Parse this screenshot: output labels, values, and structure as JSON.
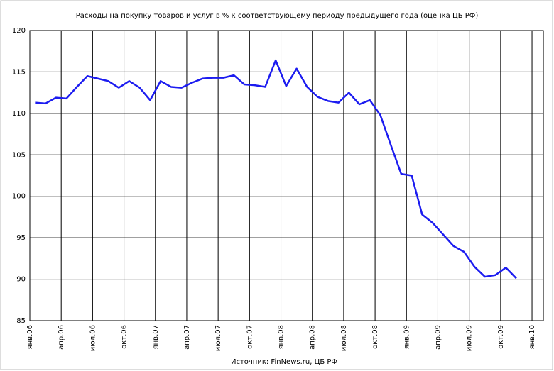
{
  "chart_data": {
    "type": "line",
    "title": "Расходы на покупку товаров и услуг в % к соответствующему периоду предыдущего года (оценка ЦБ РФ)",
    "source": "Источник: FinNews.ru, ЦБ РФ",
    "categories": [
      "янв.06",
      null,
      null,
      "апр.06",
      null,
      null,
      "июл.06",
      null,
      null,
      "окт.06",
      null,
      null,
      "янв.07",
      null,
      null,
      "апр.07",
      null,
      null,
      "июл.07",
      null,
      null,
      "окт.07",
      null,
      null,
      "янв.08",
      null,
      null,
      "апр.08",
      null,
      null,
      "июл.08",
      null,
      null,
      "окт.08",
      null,
      null,
      "янв.09",
      null,
      null,
      "апр.09",
      null,
      null,
      "июл.09",
      null,
      null,
      "окт.09",
      null,
      null,
      "янв.10"
    ],
    "values": [
      111.3,
      111.2,
      111.9,
      111.8,
      113.2,
      114.5,
      114.2,
      113.9,
      113.1,
      113.9,
      113.1,
      111.6,
      113.9,
      113.2,
      113.1,
      113.7,
      114.2,
      114.3,
      114.3,
      114.6,
      113.5,
      113.4,
      113.2,
      116.4,
      113.3,
      115.4,
      113.2,
      112.0,
      111.5,
      111.3,
      112.5,
      111.1,
      111.6,
      109.8,
      106.2,
      102.7,
      102.5,
      97.8,
      96.8,
      95.4,
      94.0,
      93.3,
      91.5,
      90.3,
      90.5,
      91.4,
      90.1,
      null,
      null
    ],
    "color": "#1c1cf0",
    "ylim": [
      85,
      120
    ],
    "yticks": [
      85,
      90,
      95,
      100,
      105,
      110,
      115,
      120
    ],
    "grid": true
  }
}
